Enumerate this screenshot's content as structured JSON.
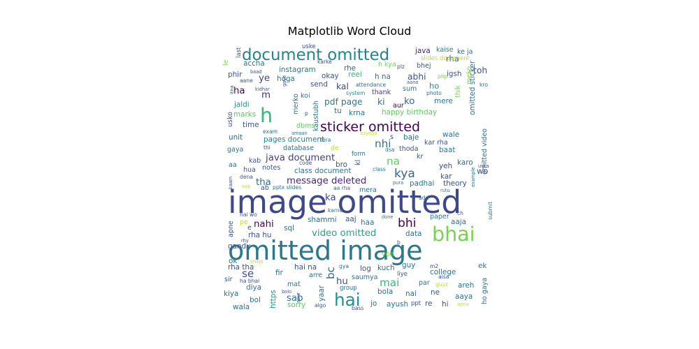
{
  "chart_data": {
    "type": "wordcloud",
    "title": "Matplotlib Word Cloud",
    "words": [
      {
        "text": "image omitted",
        "weight": 48,
        "color": "#3e4989"
      },
      {
        "text": "omitted image",
        "weight": 40,
        "color": "#2a788e"
      },
      {
        "text": "document omitted",
        "weight": 24,
        "color": "#26828e"
      },
      {
        "text": "sticker omitted",
        "weight": 20,
        "color": "#440154"
      },
      {
        "text": "bhai",
        "weight": 30,
        "color": "#7ad151"
      },
      {
        "text": "hai",
        "weight": 26,
        "color": "#21918c"
      },
      {
        "text": "h",
        "weight": 30,
        "color": "#35b779"
      },
      {
        "text": "message deleted",
        "weight": 14,
        "color": "#482878"
      },
      {
        "text": "java document",
        "weight": 14,
        "color": "#433e85"
      },
      {
        "text": "kya",
        "weight": 18,
        "color": "#31688e"
      },
      {
        "text": "bhi",
        "weight": 18,
        "color": "#440154"
      },
      {
        "text": "nhi",
        "weight": 16,
        "color": "#2a788e"
      },
      {
        "text": "video omitted",
        "weight": 14,
        "color": "#21a585"
      },
      {
        "text": "mai",
        "weight": 16,
        "color": "#35b779"
      },
      {
        "text": "na",
        "weight": 16,
        "color": "#5ec962"
      },
      {
        "text": "se",
        "weight": 16,
        "color": "#3b528b"
      },
      {
        "text": "bc",
        "weight": 16,
        "color": "#31688e"
      },
      {
        "text": "nahi",
        "weight": 14,
        "color": "#440154"
      },
      {
        "text": "ye",
        "weight": 14,
        "color": "#3e4989"
      },
      {
        "text": "ko",
        "weight": 14,
        "color": "#31688e"
      },
      {
        "text": "ka",
        "weight": 14,
        "color": "#414487"
      },
      {
        "text": "tha",
        "weight": 14,
        "color": "#2c728e"
      },
      {
        "text": "sab",
        "weight": 14,
        "color": "#2c728e"
      },
      {
        "text": "hu",
        "weight": 14,
        "color": "#3b528b"
      },
      {
        "text": "ha",
        "weight": 14,
        "color": "#440154"
      },
      {
        "text": "m",
        "weight": 14,
        "color": "#482878"
      },
      {
        "text": "abhi",
        "weight": 13,
        "color": "#3b528b"
      },
      {
        "text": "toh",
        "weight": 13,
        "color": "#3b528b"
      },
      {
        "text": "pdf page",
        "weight": 13,
        "color": "#2a788e"
      },
      {
        "text": "class document",
        "weight": 11,
        "color": "#2a788e"
      },
      {
        "text": "pages document",
        "weight": 11,
        "color": "#26828e"
      },
      {
        "text": "happy birthday",
        "weight": 11,
        "color": "#5ec962"
      },
      {
        "text": "omitted sticker",
        "weight": 11,
        "color": "#2c728e"
      },
      {
        "text": "omitted video",
        "weight": 10,
        "color": "#2c728e"
      },
      {
        "text": "instagram",
        "weight": 11,
        "color": "#2a788e"
      },
      {
        "text": "accha",
        "weight": 11,
        "color": "#2c728e"
      },
      {
        "text": "java",
        "weight": 11,
        "color": "#482878"
      },
      {
        "text": "kaise",
        "weight": 10,
        "color": "#2a788e"
      },
      {
        "text": "ke ja",
        "weight": 10,
        "color": "#31688e"
      },
      {
        "text": "rha",
        "weight": 12,
        "color": "#31688e"
      },
      {
        "text": "slides document",
        "weight": 9,
        "color": "#bddf26"
      },
      {
        "text": "h kya",
        "weight": 10,
        "color": "#7ad151"
      },
      {
        "text": "plz",
        "weight": 8,
        "color": "#3b528b"
      },
      {
        "text": "bhej",
        "weight": 10,
        "color": "#3b528b"
      },
      {
        "text": "igsh",
        "weight": 11,
        "color": "#3b528b"
      },
      {
        "text": "rhe",
        "weight": 11,
        "color": "#2c728e"
      },
      {
        "text": "okay",
        "weight": 11,
        "color": "#3b528b"
      },
      {
        "text": "reel",
        "weight": 11,
        "color": "#35b779"
      },
      {
        "text": "h na",
        "weight": 11,
        "color": "#2c728e"
      },
      {
        "text": "send",
        "weight": 11,
        "color": "#3b528b"
      },
      {
        "text": "kal",
        "weight": 13,
        "color": "#3e4989"
      },
      {
        "text": "attendance",
        "weight": 8,
        "color": "#2c728e"
      },
      {
        "text": "thank",
        "weight": 10,
        "color": "#433e85"
      },
      {
        "text": "sum",
        "weight": 10,
        "color": "#2c728e"
      },
      {
        "text": "ho",
        "weight": 12,
        "color": "#21918c"
      },
      {
        "text": "ki",
        "weight": 13,
        "color": "#2c728e"
      },
      {
        "text": "aur",
        "weight": 10,
        "color": "#440154"
      },
      {
        "text": "mere",
        "weight": 11,
        "color": "#2c728e"
      },
      {
        "text": "tu",
        "weight": 11,
        "color": "#2c728e"
      },
      {
        "text": "krna",
        "weight": 11,
        "color": "#2a788e"
      },
      {
        "text": "hoga",
        "weight": 11,
        "color": "#2a788e"
      },
      {
        "text": "jaldi",
        "weight": 11,
        "color": "#21918c"
      },
      {
        "text": "marks",
        "weight": 11,
        "color": "#5ec962"
      },
      {
        "text": "time",
        "weight": 11,
        "color": "#3b528b"
      },
      {
        "text": "unit",
        "weight": 11,
        "color": "#2c728e"
      },
      {
        "text": "gaya",
        "weight": 10,
        "color": "#2c728e"
      },
      {
        "text": "database",
        "weight": 10,
        "color": "#2c728e"
      },
      {
        "text": "thoda",
        "weight": 10,
        "color": "#3b528b"
      },
      {
        "text": "baje",
        "weight": 11,
        "color": "#2c728e"
      },
      {
        "text": "kar rha",
        "weight": 10,
        "color": "#3b528b"
      },
      {
        "text": "wale",
        "weight": 11,
        "color": "#2c728e"
      },
      {
        "text": "baat",
        "weight": 11,
        "color": "#26828e"
      },
      {
        "text": "notes",
        "weight": 10,
        "color": "#3b528b"
      },
      {
        "text": "bro",
        "weight": 11,
        "color": "#3b528b"
      },
      {
        "text": "yeh",
        "weight": 11,
        "color": "#3e4989"
      },
      {
        "text": "karo",
        "weight": 11,
        "color": "#2c728e"
      },
      {
        "text": "kar",
        "weight": 11,
        "color": "#3b528b"
      },
      {
        "text": "wo",
        "weight": 12,
        "color": "#3b528b"
      },
      {
        "text": "theory",
        "weight": 11,
        "color": "#3b528b"
      },
      {
        "text": "padhai",
        "weight": 11,
        "color": "#2c728e"
      },
      {
        "text": "mera",
        "weight": 10,
        "color": "#2c728e"
      },
      {
        "text": "aaj",
        "weight": 11,
        "color": "#3b528b"
      },
      {
        "text": "haa",
        "weight": 11,
        "color": "#2c728e"
      },
      {
        "text": "shammi",
        "weight": 11,
        "color": "#2c728e"
      },
      {
        "text": "data",
        "weight": 11,
        "color": "#2c728e"
      },
      {
        "text": "paper",
        "weight": 10,
        "color": "#2c728e"
      },
      {
        "text": "aaja",
        "weight": 11,
        "color": "#2c728e"
      },
      {
        "text": "sql",
        "weight": 11,
        "color": "#2c728e"
      },
      {
        "text": "rha hu",
        "weight": 11,
        "color": "#3b528b"
      },
      {
        "text": "gandu",
        "weight": 11,
        "color": "#3b528b"
      },
      {
        "text": "ok",
        "weight": 11,
        "color": "#2c728e"
      },
      {
        "text": "rha tha",
        "weight": 11,
        "color": "#3b528b"
      },
      {
        "text": "hai na",
        "weight": 11,
        "color": "#3b528b"
      },
      {
        "text": "kuch",
        "weight": 11,
        "color": "#2c728e"
      },
      {
        "text": "guy",
        "weight": 11,
        "color": "#2c728e"
      },
      {
        "text": "college",
        "weight": 11,
        "color": "#2c728e"
      },
      {
        "text": "ek",
        "weight": 11,
        "color": "#2c728e"
      },
      {
        "text": "log",
        "weight": 11,
        "color": "#3b528b"
      },
      {
        "text": "saumya",
        "weight": 10,
        "color": "#2c728e"
      },
      {
        "text": "fir",
        "weight": 11,
        "color": "#2c728e"
      },
      {
        "text": "arre",
        "weight": 10,
        "color": "#2c728e"
      },
      {
        "text": "mat",
        "weight": 10,
        "color": "#2c728e"
      },
      {
        "text": "bola",
        "weight": 11,
        "color": "#2c728e"
      },
      {
        "text": "nai",
        "weight": 11,
        "color": "#2c728e"
      },
      {
        "text": "ne",
        "weight": 11,
        "color": "#3b528b"
      },
      {
        "text": "areh",
        "weight": 11,
        "color": "#2c728e"
      },
      {
        "text": "aaya",
        "weight": 11,
        "color": "#2c728e"
      },
      {
        "text": "diya",
        "weight": 11,
        "color": "#2c728e"
      },
      {
        "text": "kiya",
        "weight": 11,
        "color": "#2c728e"
      },
      {
        "text": "bol",
        "weight": 11,
        "color": "#2c728e"
      },
      {
        "text": "sorry",
        "weight": 11,
        "color": "#5ec962"
      },
      {
        "text": "jo",
        "weight": 11,
        "color": "#2c728e"
      },
      {
        "text": "ayush",
        "weight": 11,
        "color": "#2c728e"
      },
      {
        "text": "re",
        "weight": 11,
        "color": "#3b528b"
      },
      {
        "text": "hi",
        "weight": 11,
        "color": "#3b528b"
      },
      {
        "text": "wala",
        "weight": 11,
        "color": "#2c728e"
      },
      {
        "text": "https",
        "weight": 11,
        "color": "#21918c"
      },
      {
        "text": "yaar",
        "weight": 11,
        "color": "#2c728e"
      },
      {
        "text": "ho gaya",
        "weight": 10,
        "color": "#2c728e"
      },
      {
        "text": "phir",
        "weight": 11,
        "color": "#3b528b"
      },
      {
        "text": "kaustubh",
        "weight": 10,
        "color": "#2c728e"
      },
      {
        "text": "koi",
        "weight": 10,
        "color": "#2c728e"
      },
      {
        "text": "merko",
        "weight": 10,
        "color": "#2c728e"
      },
      {
        "text": "usko",
        "weight": 10,
        "color": "#3b528b"
      },
      {
        "text": "dbms",
        "weight": 10,
        "color": "#5ec962"
      },
      {
        "text": "kab",
        "weight": 10,
        "color": "#3b528b"
      },
      {
        "text": "hua",
        "weight": 10,
        "color": "#3b528b"
      },
      {
        "text": "last",
        "weight": 9,
        "color": "#3b528b"
      },
      {
        "text": "le",
        "weight": 10,
        "color": "#7ad151"
      },
      {
        "text": "uske",
        "weight": 9,
        "color": "#3b528b"
      },
      {
        "text": "karke",
        "weight": 8,
        "color": "#3b528b"
      },
      {
        "text": "thik",
        "weight": 10,
        "color": "#7ad151"
      },
      {
        "text": "meko",
        "weight": 10,
        "color": "#7ad151"
      },
      {
        "text": "php",
        "weight": 8,
        "color": "#7ad151"
      },
      {
        "text": "kro",
        "weight": 8,
        "color": "#2c728e"
      },
      {
        "text": "photo",
        "weight": 8,
        "color": "#2c728e"
      },
      {
        "text": "system",
        "weight": 8,
        "color": "#21918c"
      },
      {
        "text": "aana",
        "weight": 7,
        "color": "#3b528b"
      },
      {
        "text": "kidhar",
        "weight": 7,
        "color": "#3b528b"
      },
      {
        "text": "baad",
        "weight": 7,
        "color": "#3b528b"
      },
      {
        "text": "aane",
        "weight": 8,
        "color": "#3b528b"
      },
      {
        "text": "gaye",
        "weight": 7,
        "color": "#3b528b"
      },
      {
        "text": "exam",
        "weight": 8,
        "color": "#2c728e"
      },
      {
        "text": "amaan",
        "weight": 7,
        "color": "#2c728e"
      },
      {
        "text": "aayega",
        "weight": 7,
        "color": "#bddf26"
      },
      {
        "text": "tera",
        "weight": 8,
        "color": "#2c728e"
      },
      {
        "text": "thi",
        "weight": 8,
        "color": "#3b528b"
      },
      {
        "text": "de",
        "weight": 10,
        "color": "#bddf26"
      },
      {
        "text": "form",
        "weight": 9,
        "color": "#2c728e"
      },
      {
        "text": "dsa",
        "weight": 8,
        "color": "#2c728e"
      },
      {
        "text": "kl",
        "weight": 10,
        "color": "#3b528b"
      },
      {
        "text": "s",
        "weight": 10,
        "color": "#3b528b"
      },
      {
        "text": "kr",
        "weight": 10,
        "color": "#3b528b"
      },
      {
        "text": "code",
        "weight": 8,
        "color": "#3b528b"
      },
      {
        "text": "aa",
        "weight": 10,
        "color": "#2c728e"
      },
      {
        "text": "class",
        "weight": 8,
        "color": "#2c728e"
      },
      {
        "text": "example",
        "weight": 7,
        "color": "#2c728e"
      },
      {
        "text": "uska",
        "weight": 7,
        "color": "#3b528b"
      },
      {
        "text": "dena",
        "weight": 8,
        "color": "#3b528b"
      },
      {
        "text": "kaam",
        "weight": 7,
        "color": "#3b528b"
      },
      {
        "text": "aap",
        "weight": 7,
        "color": "#bddf26"
      },
      {
        "text": "ab",
        "weight": 10,
        "color": "#3b528b"
      },
      {
        "text": "pptx slides",
        "weight": 8,
        "color": "#2c728e"
      },
      {
        "text": "aa rha",
        "weight": 8,
        "color": "#2c728e"
      },
      {
        "text": "pura",
        "weight": 7,
        "color": "#2c728e"
      },
      {
        "text": "rutu",
        "weight": 7,
        "color": "#2c728e"
      },
      {
        "text": "submit",
        "weight": 8,
        "color": "#2c728e"
      },
      {
        "text": "add",
        "weight": 8,
        "color": "#2c728e"
      },
      {
        "text": "karne",
        "weight": 8,
        "color": "#2c728e"
      },
      {
        "text": "done",
        "weight": 7,
        "color": "#2c728e"
      },
      {
        "text": "hai wo",
        "weight": 8,
        "color": "#3b528b"
      },
      {
        "text": "ch",
        "weight": 8,
        "color": "#3b528b"
      },
      {
        "text": "pe",
        "weight": 10,
        "color": "#bddf26"
      },
      {
        "text": "e",
        "weight": 10,
        "color": "#3b528b"
      },
      {
        "text": "apne",
        "weight": 10,
        "color": "#3b528b"
      },
      {
        "text": "rhy",
        "weight": 7,
        "color": "#3b528b"
      },
      {
        "text": "b",
        "weight": 8,
        "color": "#3b528b"
      },
      {
        "text": "voh",
        "weight": 10,
        "color": "#7ad151"
      },
      {
        "text": "bhejo",
        "weight": 7,
        "color": "#bddf26"
      },
      {
        "text": "gya",
        "weight": 8,
        "color": "#2c728e"
      },
      {
        "text": "m2",
        "weight": 8,
        "color": "#3b528b"
      },
      {
        "text": "liye",
        "weight": 9,
        "color": "#3b528b"
      },
      {
        "text": "aisa",
        "weight": 8,
        "color": "#3b528b"
      },
      {
        "text": "guyz",
        "weight": 8,
        "color": "#bddf26"
      },
      {
        "text": "sir",
        "weight": 10,
        "color": "#3b528b"
      },
      {
        "text": "ha bhai",
        "weight": 8,
        "color": "#3b528b"
      },
      {
        "text": "bolo",
        "weight": 7,
        "color": "#3b528b"
      },
      {
        "text": "aaur",
        "weight": 7,
        "color": "#3b528b"
      },
      {
        "text": "group",
        "weight": 9,
        "color": "#2c728e"
      },
      {
        "text": "par",
        "weight": 10,
        "color": "#2c728e"
      },
      {
        "text": "algo",
        "weight": 8,
        "color": "#3b528b"
      },
      {
        "text": "bass",
        "weight": 8,
        "color": "#3b528b"
      },
      {
        "text": "ppt",
        "weight": 9,
        "color": "#3b528b"
      },
      {
        "text": "apna",
        "weight": 7,
        "color": "#bddf26"
      },
      {
        "text": "itna",
        "weight": 7,
        "color": "#3b528b"
      },
      {
        "text": "p",
        "weight": 8,
        "color": "#3b528b"
      }
    ]
  }
}
